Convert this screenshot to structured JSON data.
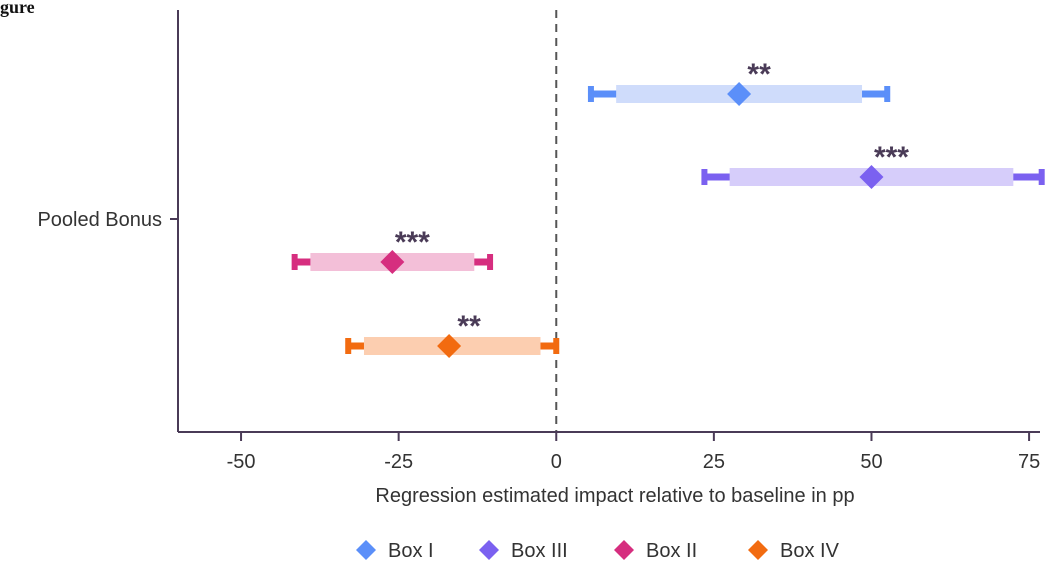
{
  "chart_data": {
    "type": "forest",
    "title": "",
    "corner_label": "gure",
    "xlabel": "Regression estimated impact relative to baseline in pp",
    "ylabel": "",
    "xlim": [
      -60,
      78
    ],
    "x_ticks": [
      -50,
      -25,
      0,
      25,
      50,
      75
    ],
    "x_tick_labels": [
      "-50",
      "-25",
      "0",
      "25",
      "50",
      "75"
    ],
    "y_category": "Pooled Bonus",
    "reference_line": 0,
    "grid": false,
    "legend_position": "bottom",
    "series": [
      {
        "name": "Box I",
        "estimate": 29,
        "ci95": [
          5.5,
          52.5
        ],
        "ci90": [
          9.5,
          48.5
        ],
        "significance": "**",
        "color": "#5b8ff9",
        "light_color": "#cfdcfb"
      },
      {
        "name": "Box III",
        "estimate": 50,
        "ci95": [
          23.5,
          77
        ],
        "ci90": [
          27.5,
          72.5
        ],
        "significance": "***",
        "color": "#7b61f0",
        "light_color": "#d6cdfa"
      },
      {
        "name": "Box II",
        "estimate": -26,
        "ci95": [
          -41.5,
          -10.5
        ],
        "ci90": [
          -39,
          -13
        ],
        "significance": "***",
        "color": "#d62e7f",
        "light_color": "#f3bfd8"
      },
      {
        "name": "Box IV",
        "estimate": -17,
        "ci95": [
          -33,
          0
        ],
        "ci90": [
          -30.5,
          -2.5
        ],
        "significance": "**",
        "color": "#f26b10",
        "light_color": "#fcceb0"
      }
    ]
  }
}
